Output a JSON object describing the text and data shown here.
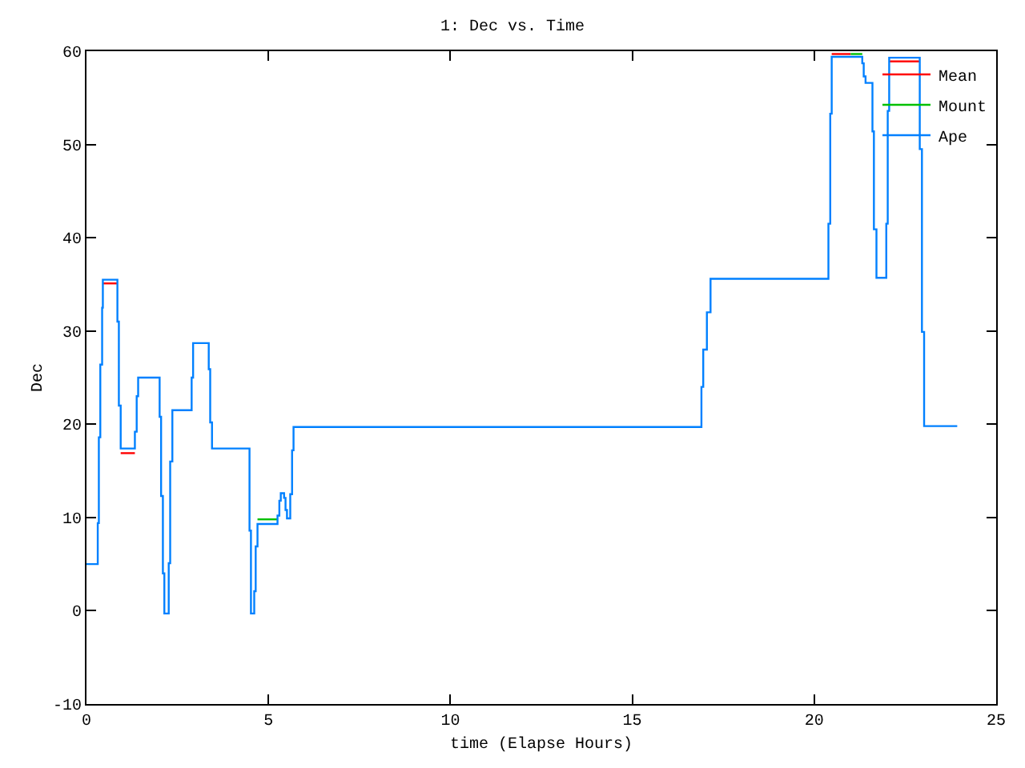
{
  "chart_data": {
    "type": "step",
    "title": "1: Dec vs. Time",
    "xlabel": "time (Elapse Hours)",
    "ylabel": "Dec",
    "x": [
      0,
      0.31,
      0.34,
      0.38,
      0.43,
      0.45,
      0.85,
      0.89,
      0.94,
      1.33,
      1.38,
      1.42,
      2.01,
      2.05,
      2.1,
      2.14,
      2.26,
      2.3,
      2.36,
      2.89,
      2.93,
      3.36,
      3.4,
      3.45,
      4.48,
      4.52,
      4.61,
      4.65,
      4.7,
      5.25,
      5.3,
      5.34,
      5.43,
      5.47,
      5.51,
      5.6,
      5.65,
      5.69,
      16.9,
      16.95,
      17.05,
      17.15,
      20.39,
      20.44,
      20.48,
      21.32,
      21.36,
      21.41,
      21.6,
      21.64,
      21.71,
      21.98,
      22.02,
      22.06,
      22.9,
      22.96,
      23.02,
      23.93
    ],
    "series": [
      {
        "name": "Mean",
        "color": "#ff0000",
        "x": [
          0.45,
          0.85,
          0.9,
          0.94,
          1.33,
          1.4,
          20.48,
          21.0,
          21.1,
          22.06,
          22.9
        ],
        "values": [
          35.1,
          35.1,
          null,
          16.9,
          16.9,
          null,
          59.7,
          59.7,
          null,
          58.9,
          58.9
        ]
      },
      {
        "name": "Mount",
        "color": "#00c000",
        "x": [
          4.7,
          5.25,
          5.3,
          21.0,
          21.32
        ],
        "values": [
          9.8,
          9.8,
          null,
          59.7,
          59.7
        ]
      },
      {
        "name": "Ape",
        "color": "#0080ff",
        "values": [
          5,
          9.4,
          18.6,
          26.4,
          32.5,
          35.5,
          31,
          22,
          17.4,
          19.2,
          23,
          25,
          20.8,
          12.3,
          4,
          -0.3,
          5.1,
          16,
          21.5,
          25,
          28.7,
          25.9,
          20.2,
          17.4,
          8.6,
          -0.3,
          2.1,
          6.9,
          9.3,
          10.2,
          11.8,
          12.6,
          12.1,
          10.8,
          9.9,
          12.5,
          17.2,
          19.7,
          24,
          28,
          32,
          35.6,
          41.5,
          53.3,
          59.4,
          58.7,
          57.3,
          56.6,
          51.4,
          40.9,
          35.7,
          41.5,
          53.6,
          59.3,
          49.5,
          29.9,
          19.8,
          19.8
        ]
      }
    ],
    "xlim": [
      0,
      25
    ],
    "xticks": [
      0,
      5,
      10,
      15,
      20,
      25
    ],
    "ylim": [
      -10,
      60
    ],
    "yticks": [
      -10,
      0,
      10,
      20,
      30,
      40,
      50,
      60
    ],
    "grid": false,
    "legend": "top right",
    "marker": "none",
    "line_style": "solid"
  }
}
